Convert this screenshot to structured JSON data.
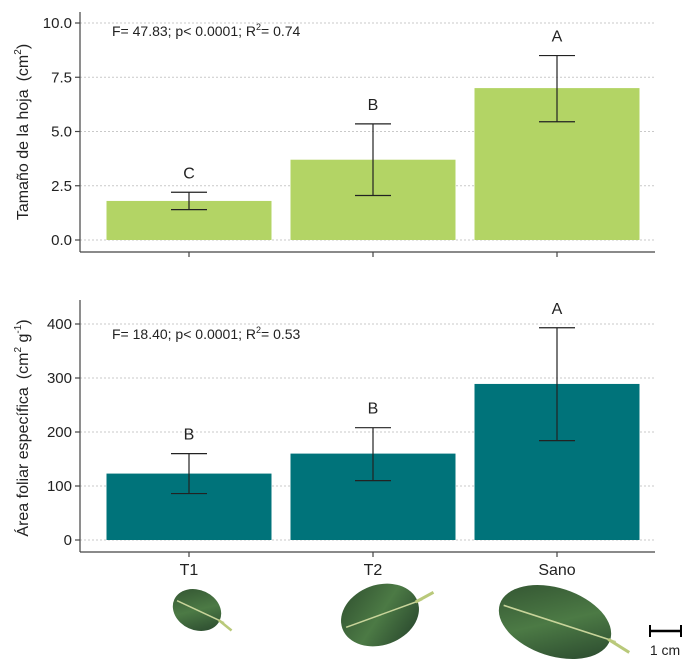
{
  "chart_data": [
    {
      "type": "bar",
      "categories": [
        "T1",
        "T2",
        "Sano"
      ],
      "values": [
        1.8,
        3.7,
        7.0
      ],
      "error_low": [
        1.4,
        2.05,
        5.45
      ],
      "error_high": [
        2.2,
        5.35,
        8.5
      ],
      "letters": [
        "C",
        "B",
        "A"
      ],
      "ylabel": "Tamaño de la hoja",
      "ylabel_unit": "(cm",
      "ylabel_unit_sup": "2",
      "ylabel_unit_end": ")",
      "yticks": [
        "0.0",
        "2.5",
        "5.0",
        "7.5",
        "10.0"
      ],
      "ylim": [
        0,
        10.5
      ],
      "stats_prefix": "F= 47.83; p< 0.0001; R",
      "stats_sup": "2",
      "stats_suffix": "= 0.74",
      "grid": "horizontal",
      "color": "#b3d465"
    },
    {
      "type": "bar",
      "categories": [
        "T1",
        "T2",
        "Sano"
      ],
      "values": [
        123,
        160,
        289
      ],
      "error_low": [
        86,
        110,
        184
      ],
      "error_high": [
        160,
        208,
        393
      ],
      "letters": [
        "B",
        "B",
        "A"
      ],
      "ylabel": "Área foliar específica",
      "ylabel_unit": "(cm",
      "ylabel_unit_sup1": "2",
      "ylabel_unit_mid": " g",
      "ylabel_unit_sup2": "-1",
      "ylabel_unit_end": ")",
      "yticks": [
        "0",
        "100",
        "200",
        "300",
        "400"
      ],
      "ylim": [
        0,
        425
      ],
      "stats_prefix": "F= 18.40; p< 0.0001; R",
      "stats_sup": "2",
      "stats_suffix": "= 0.53",
      "grid": "horizontal",
      "color": "#00737a"
    }
  ],
  "xticks": [
    "T1",
    "T2",
    "Sano"
  ],
  "scale_bar_label": "1 cm",
  "leaf_color": "#3a5f3a"
}
